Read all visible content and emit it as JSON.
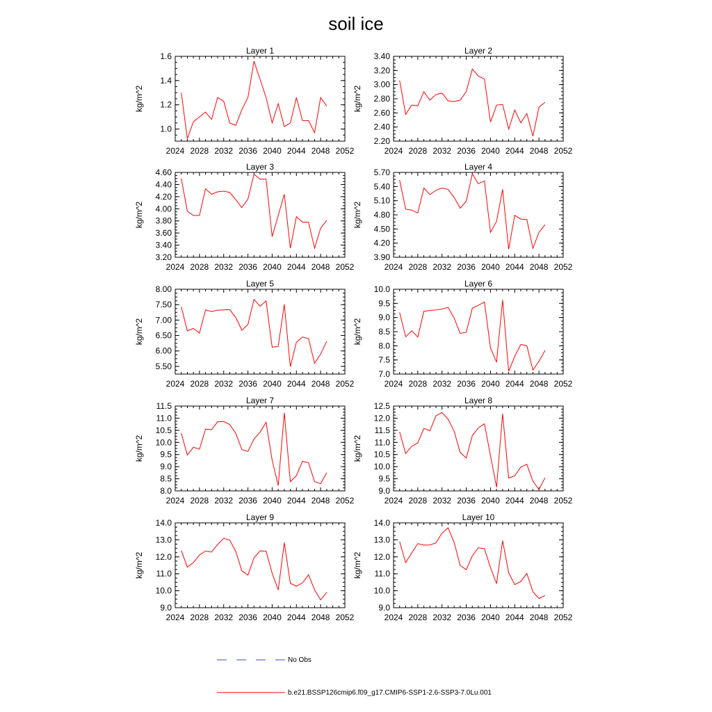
{
  "figure_title": "soil ice",
  "colors": {
    "model_line": "#ff0000",
    "obs_line": "#3b4cc0",
    "axis": "#000000"
  },
  "legend": {
    "obs_label": "No Obs",
    "model_label": "b.e21.BSSP126cmip6.f09_g17.CMIP6-SSP1-2.6-SSP3-7.0Lu.001"
  },
  "chart_data": [
    {
      "type": "line",
      "title": "Layer 1",
      "ylabel": "kg/m^2",
      "xlim": [
        2024,
        2052
      ],
      "xticks": [
        "2024",
        "2028",
        "2032",
        "2036",
        "2040",
        "2044",
        "2048",
        "2052"
      ],
      "ylim": [
        0.9,
        1.6
      ],
      "yticks": [
        "1.0",
        "1.2",
        "1.4",
        "1.6"
      ],
      "x": [
        2025,
        2026,
        2027,
        2028,
        2029,
        2030,
        2031,
        2032,
        2033,
        2034,
        2035,
        2036,
        2037,
        2038,
        2039,
        2040,
        2041,
        2042,
        2043,
        2044,
        2045,
        2046,
        2047,
        2048,
        2049
      ],
      "series": [
        {
          "values": [
            1.3,
            0.92,
            1.06,
            1.1,
            1.14,
            1.08,
            1.26,
            1.23,
            1.05,
            1.03,
            1.16,
            1.26,
            1.56,
            1.41,
            1.26,
            1.05,
            1.21,
            1.02,
            1.05,
            1.26,
            1.07,
            1.07,
            0.97,
            1.26,
            1.19
          ]
        }
      ]
    },
    {
      "type": "line",
      "title": "Layer 2",
      "ylabel": "kg/m^2",
      "xlim": [
        2024,
        2052
      ],
      "xticks": [
        "2024",
        "2028",
        "2032",
        "2036",
        "2040",
        "2044",
        "2048",
        "2052"
      ],
      "ylim": [
        2.2,
        3.4
      ],
      "yticks": [
        "2.20",
        "2.40",
        "2.60",
        "2.80",
        "3.00",
        "3.20",
        "3.40"
      ],
      "x": [
        2025,
        2026,
        2027,
        2028,
        2029,
        2030,
        2031,
        2032,
        2033,
        2034,
        2035,
        2036,
        2037,
        2038,
        2039,
        2040,
        2041,
        2042,
        2043,
        2044,
        2045,
        2046,
        2047,
        2048,
        2049
      ],
      "series": [
        {
          "values": [
            3.06,
            2.58,
            2.71,
            2.7,
            2.9,
            2.78,
            2.86,
            2.88,
            2.77,
            2.76,
            2.78,
            2.9,
            3.22,
            3.12,
            3.08,
            2.47,
            2.71,
            2.72,
            2.37,
            2.64,
            2.46,
            2.59,
            2.27,
            2.68,
            2.75
          ]
        }
      ]
    },
    {
      "type": "line",
      "title": "Layer 3",
      "ylabel": "kg/m^2",
      "xlim": [
        2024,
        2052
      ],
      "xticks": [
        "2024",
        "2028",
        "2032",
        "2036",
        "2040",
        "2044",
        "2048",
        "2052"
      ],
      "ylim": [
        3.2,
        4.6
      ],
      "yticks": [
        "3.20",
        "3.40",
        "3.60",
        "3.80",
        "4.00",
        "4.20",
        "4.40",
        "4.60"
      ],
      "x": [
        2025,
        2026,
        2027,
        2028,
        2029,
        2030,
        2031,
        2032,
        2033,
        2034,
        2035,
        2036,
        2037,
        2038,
        2039,
        2040,
        2041,
        2042,
        2043,
        2044,
        2045,
        2046,
        2047,
        2048,
        2049
      ],
      "series": [
        {
          "values": [
            4.5,
            3.96,
            3.89,
            3.89,
            4.33,
            4.24,
            4.28,
            4.29,
            4.27,
            4.15,
            4.02,
            4.16,
            4.57,
            4.49,
            4.49,
            3.54,
            3.89,
            4.24,
            3.35,
            3.87,
            3.78,
            3.78,
            3.35,
            3.68,
            3.81
          ]
        }
      ]
    },
    {
      "type": "line",
      "title": "Layer 4",
      "ylabel": "kg/m^2",
      "xlim": [
        2024,
        2052
      ],
      "xticks": [
        "2024",
        "2028",
        "2032",
        "2036",
        "2040",
        "2044",
        "2048",
        "2052"
      ],
      "ylim": [
        3.9,
        5.7
      ],
      "yticks": [
        "3.90",
        "4.20",
        "4.50",
        "4.80",
        "5.10",
        "5.40",
        "5.70"
      ],
      "x": [
        2025,
        2026,
        2027,
        2028,
        2029,
        2030,
        2031,
        2032,
        2033,
        2034,
        2035,
        2036,
        2037,
        2038,
        2039,
        2040,
        2041,
        2042,
        2043,
        2044,
        2045,
        2046,
        2047,
        2048,
        2049
      ],
      "series": [
        {
          "values": [
            5.54,
            4.92,
            4.9,
            4.84,
            5.37,
            5.23,
            5.32,
            5.37,
            5.34,
            5.17,
            4.94,
            5.09,
            5.67,
            5.46,
            5.52,
            4.43,
            4.66,
            5.34,
            4.07,
            4.79,
            4.71,
            4.7,
            4.09,
            4.43,
            4.59
          ]
        }
      ]
    },
    {
      "type": "line",
      "title": "Layer 5",
      "ylabel": "kg/m^2",
      "xlim": [
        2024,
        2052
      ],
      "xticks": [
        "2024",
        "2028",
        "2032",
        "2036",
        "2040",
        "2044",
        "2048",
        "2052"
      ],
      "ylim": [
        5.25,
        8.0
      ],
      "yticks": [
        "5.50",
        "6.00",
        "6.50",
        "7.00",
        "7.50",
        "8.00"
      ],
      "x": [
        2025,
        2026,
        2027,
        2028,
        2029,
        2030,
        2031,
        2032,
        2033,
        2034,
        2035,
        2036,
        2037,
        2038,
        2039,
        2040,
        2041,
        2042,
        2043,
        2044,
        2045,
        2046,
        2047,
        2048,
        2049
      ],
      "series": [
        {
          "values": [
            7.43,
            6.65,
            6.73,
            6.58,
            7.33,
            7.28,
            7.32,
            7.33,
            7.34,
            7.08,
            6.67,
            6.86,
            7.67,
            7.45,
            7.62,
            6.12,
            6.15,
            7.51,
            5.49,
            6.28,
            6.45,
            6.4,
            5.6,
            5.9,
            6.31
          ]
        }
      ]
    },
    {
      "type": "line",
      "title": "Layer 6",
      "ylabel": "kg/m^2",
      "xlim": [
        2024,
        2052
      ],
      "xticks": [
        "2024",
        "2028",
        "2032",
        "2036",
        "2040",
        "2044",
        "2048",
        "2052"
      ],
      "ylim": [
        7.0,
        10.0
      ],
      "yticks": [
        "7.0",
        "7.5",
        "8.0",
        "8.5",
        "9.0",
        "9.5",
        "10.0"
      ],
      "x": [
        2025,
        2026,
        2027,
        2028,
        2029,
        2030,
        2031,
        2032,
        2033,
        2034,
        2035,
        2036,
        2037,
        2038,
        2039,
        2040,
        2041,
        2042,
        2043,
        2044,
        2045,
        2046,
        2047,
        2048,
        2049
      ],
      "series": [
        {
          "values": [
            9.18,
            8.32,
            8.53,
            8.31,
            9.22,
            9.25,
            9.27,
            9.3,
            9.36,
            8.98,
            8.44,
            8.48,
            9.33,
            9.43,
            9.55,
            7.92,
            7.42,
            9.62,
            7.1,
            7.63,
            8.05,
            8.0,
            7.14,
            7.45,
            7.84
          ]
        }
      ]
    },
    {
      "type": "line",
      "title": "Layer 7",
      "ylabel": "kg/m^2",
      "xlim": [
        2024,
        2052
      ],
      "xticks": [
        "2024",
        "2028",
        "2032",
        "2036",
        "2040",
        "2044",
        "2048",
        "2052"
      ],
      "ylim": [
        8.0,
        11.5
      ],
      "yticks": [
        "8.0",
        "8.5",
        "9.0",
        "9.5",
        "10.0",
        "10.5",
        "11.0",
        "11.5"
      ],
      "x": [
        2025,
        2026,
        2027,
        2028,
        2029,
        2030,
        2031,
        2032,
        2033,
        2034,
        2035,
        2036,
        2037,
        2038,
        2039,
        2040,
        2041,
        2042,
        2043,
        2044,
        2045,
        2046,
        2047,
        2048,
        2049
      ],
      "series": [
        {
          "values": [
            10.38,
            9.48,
            9.8,
            9.72,
            10.55,
            10.53,
            10.85,
            10.86,
            10.74,
            10.37,
            9.7,
            9.63,
            10.14,
            10.42,
            10.83,
            9.26,
            8.22,
            11.22,
            8.38,
            8.63,
            9.22,
            9.16,
            8.38,
            8.3,
            8.75
          ]
        }
      ]
    },
    {
      "type": "line",
      "title": "Layer 8",
      "ylabel": "kg/m^2",
      "xlim": [
        2024,
        2052
      ],
      "xticks": [
        "2024",
        "2028",
        "2032",
        "2036",
        "2040",
        "2044",
        "2048",
        "2052"
      ],
      "ylim": [
        9.0,
        12.5
      ],
      "yticks": [
        "9.0",
        "9.5",
        "10.0",
        "10.5",
        "11.0",
        "11.5",
        "12.0",
        "12.5"
      ],
      "x": [
        2025,
        2026,
        2027,
        2028,
        2029,
        2030,
        2031,
        2032,
        2033,
        2034,
        2035,
        2036,
        2037,
        2038,
        2039,
        2040,
        2041,
        2042,
        2043,
        2044,
        2045,
        2046,
        2047,
        2048,
        2049
      ],
      "series": [
        {
          "values": [
            11.44,
            10.54,
            10.84,
            10.98,
            11.58,
            11.48,
            12.1,
            12.23,
            11.96,
            11.46,
            10.58,
            10.36,
            11.28,
            11.6,
            11.77,
            10.45,
            9.15,
            12.18,
            9.53,
            9.62,
            9.98,
            10.1,
            9.4,
            9.06,
            9.54
          ]
        }
      ]
    },
    {
      "type": "line",
      "title": "Layer 9",
      "ylabel": "kg/m^2",
      "xlim": [
        2024,
        2052
      ],
      "xticks": [
        "2024",
        "2028",
        "2032",
        "2036",
        "2040",
        "2044",
        "2048",
        "2052"
      ],
      "ylim": [
        9.0,
        14.0
      ],
      "yticks": [
        "9.0",
        "10.0",
        "11.0",
        "12.0",
        "13.0",
        "14.0"
      ],
      "x": [
        2025,
        2026,
        2027,
        2028,
        2029,
        2030,
        2031,
        2032,
        2033,
        2034,
        2035,
        2036,
        2037,
        2038,
        2039,
        2040,
        2041,
        2042,
        2043,
        2044,
        2045,
        2046,
        2047,
        2048,
        2049
      ],
      "series": [
        {
          "values": [
            12.37,
            11.39,
            11.66,
            12.1,
            12.34,
            12.28,
            12.72,
            13.09,
            12.98,
            12.31,
            11.17,
            10.92,
            11.94,
            12.35,
            12.33,
            11.03,
            10.05,
            12.83,
            10.44,
            10.27,
            10.46,
            10.94,
            10.05,
            9.46,
            9.91
          ]
        }
      ]
    },
    {
      "type": "line",
      "title": "Layer 10",
      "ylabel": "kg/m^2",
      "xlim": [
        2024,
        2052
      ],
      "xticks": [
        "2024",
        "2028",
        "2032",
        "2036",
        "2040",
        "2044",
        "2048",
        "2052"
      ],
      "ylim": [
        9.0,
        14.0
      ],
      "yticks": [
        "9.0",
        "10.0",
        "11.0",
        "12.0",
        "13.0",
        "14.0"
      ],
      "x": [
        2025,
        2026,
        2027,
        2028,
        2029,
        2030,
        2031,
        2032,
        2033,
        2034,
        2035,
        2036,
        2037,
        2038,
        2039,
        2040,
        2041,
        2042,
        2043,
        2044,
        2045,
        2046,
        2047,
        2048,
        2049
      ],
      "series": [
        {
          "values": [
            12.9,
            11.66,
            12.23,
            12.78,
            12.69,
            12.7,
            12.82,
            13.4,
            13.71,
            12.84,
            11.49,
            11.24,
            12.06,
            12.53,
            12.48,
            11.36,
            10.42,
            12.95,
            11.06,
            10.36,
            10.55,
            11.02,
            9.94,
            9.55,
            9.72
          ]
        }
      ]
    }
  ]
}
